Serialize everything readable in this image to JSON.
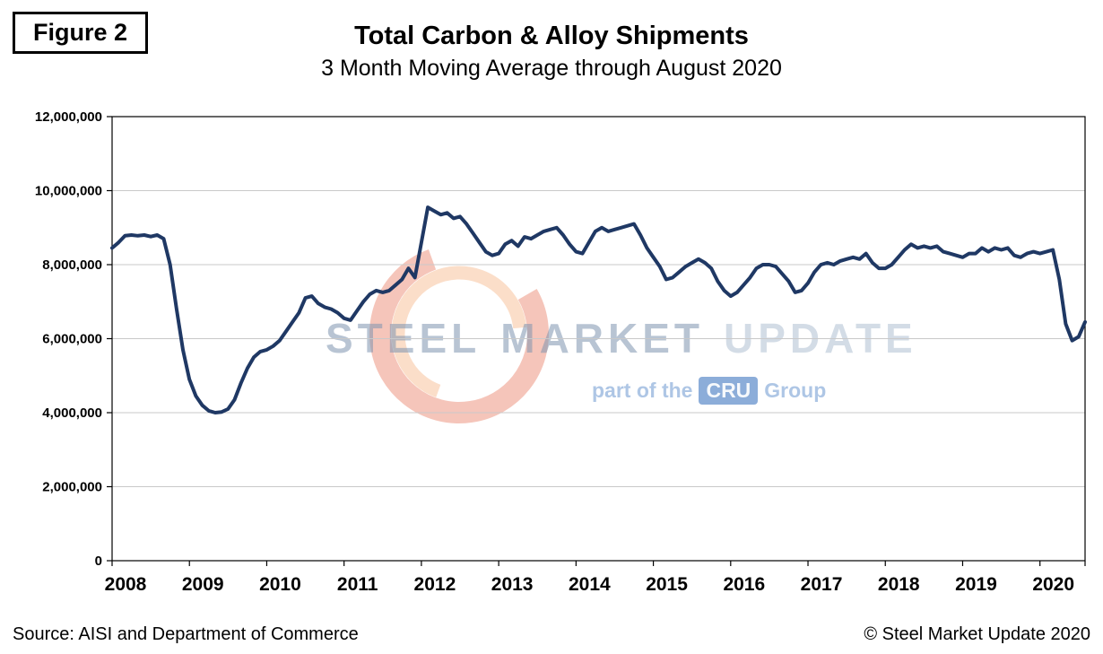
{
  "figure_label": "Figure 2",
  "title": "Total Carbon & Alloy Shipments",
  "subtitle": "3 Month Moving Average through August 2020",
  "footer": {
    "source": "Source: AISI and Department of Commerce",
    "copyright": "© Steel Market Update 2020"
  },
  "watermark": {
    "word1": "STEEL",
    "word2": "MARKET",
    "word3": "UPDATE",
    "tagline_prefix": "part of the",
    "cru": "CRU",
    "tagline_suffix": "Group"
  },
  "chart_data": {
    "type": "line",
    "title": "Total Carbon & Alloy Shipments",
    "subtitle": "3 Month Moving Average through August 2020",
    "x_start": "2008-01",
    "x_end": "2020-08",
    "x_tick_labels": [
      "2008",
      "2009",
      "2010",
      "2011",
      "2012",
      "2013",
      "2014",
      "2015",
      "2016",
      "2017",
      "2018",
      "2019",
      "2020"
    ],
    "y_ticks": [
      0,
      2000000,
      4000000,
      6000000,
      8000000,
      10000000,
      12000000
    ],
    "ylim": [
      0,
      12000000
    ],
    "grid": "horizontal",
    "legend": "none",
    "line_color": "#1F3864",
    "series": [
      {
        "name": "Total Carbon & Alloy Shipments (3-month moving average)",
        "values": [
          8450000,
          8600000,
          8780000,
          8800000,
          8780000,
          8800000,
          8760000,
          8800000,
          8700000,
          8000000,
          6800000,
          5700000,
          4900000,
          4450000,
          4200000,
          4050000,
          4000000,
          4020000,
          4100000,
          4350000,
          4800000,
          5200000,
          5500000,
          5650000,
          5700000,
          5800000,
          5950000,
          6200000,
          6450000,
          6700000,
          7100000,
          7150000,
          6950000,
          6850000,
          6800000,
          6700000,
          6550000,
          6500000,
          6750000,
          7000000,
          7200000,
          7300000,
          7250000,
          7300000,
          7450000,
          7600000,
          7900000,
          7650000,
          8600000,
          9550000,
          9450000,
          9350000,
          9400000,
          9250000,
          9300000,
          9100000,
          8850000,
          8600000,
          8350000,
          8250000,
          8300000,
          8550000,
          8650000,
          8500000,
          8750000,
          8700000,
          8800000,
          8900000,
          8950000,
          9000000,
          8800000,
          8550000,
          8350000,
          8300000,
          8600000,
          8900000,
          9000000,
          8900000,
          8950000,
          9000000,
          9050000,
          9100000,
          8800000,
          8450000,
          8200000,
          7950000,
          7600000,
          7650000,
          7800000,
          7950000,
          8050000,
          8150000,
          8050000,
          7900000,
          7550000,
          7300000,
          7150000,
          7250000,
          7450000,
          7650000,
          7900000,
          8000000,
          8000000,
          7950000,
          7750000,
          7550000,
          7250000,
          7300000,
          7500000,
          7800000,
          8000000,
          8050000,
          8000000,
          8100000,
          8150000,
          8200000,
          8150000,
          8300000,
          8050000,
          7900000,
          7900000,
          8000000,
          8200000,
          8400000,
          8550000,
          8450000,
          8500000,
          8450000,
          8500000,
          8350000,
          8300000,
          8250000,
          8200000,
          8300000,
          8300000,
          8450000,
          8350000,
          8450000,
          8400000,
          8450000,
          8250000,
          8200000,
          8300000,
          8350000,
          8300000,
          8350000,
          8400000,
          7600000,
          6400000,
          5950000,
          6050000,
          6450000
        ]
      }
    ]
  }
}
